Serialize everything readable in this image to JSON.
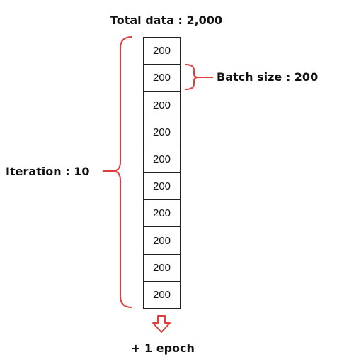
{
  "title": "Total data : 2,000",
  "batch_label": "Batch size : 200",
  "iteration_label": "Iteration : 10",
  "epoch_label": "+ 1 epoch",
  "cells": [
    "200",
    "200",
    "200",
    "200",
    "200",
    "200",
    "200",
    "200",
    "200",
    "200"
  ],
  "colors": {
    "accent": "#e23b3b",
    "stroke": "#222222",
    "text": "#111111"
  }
}
